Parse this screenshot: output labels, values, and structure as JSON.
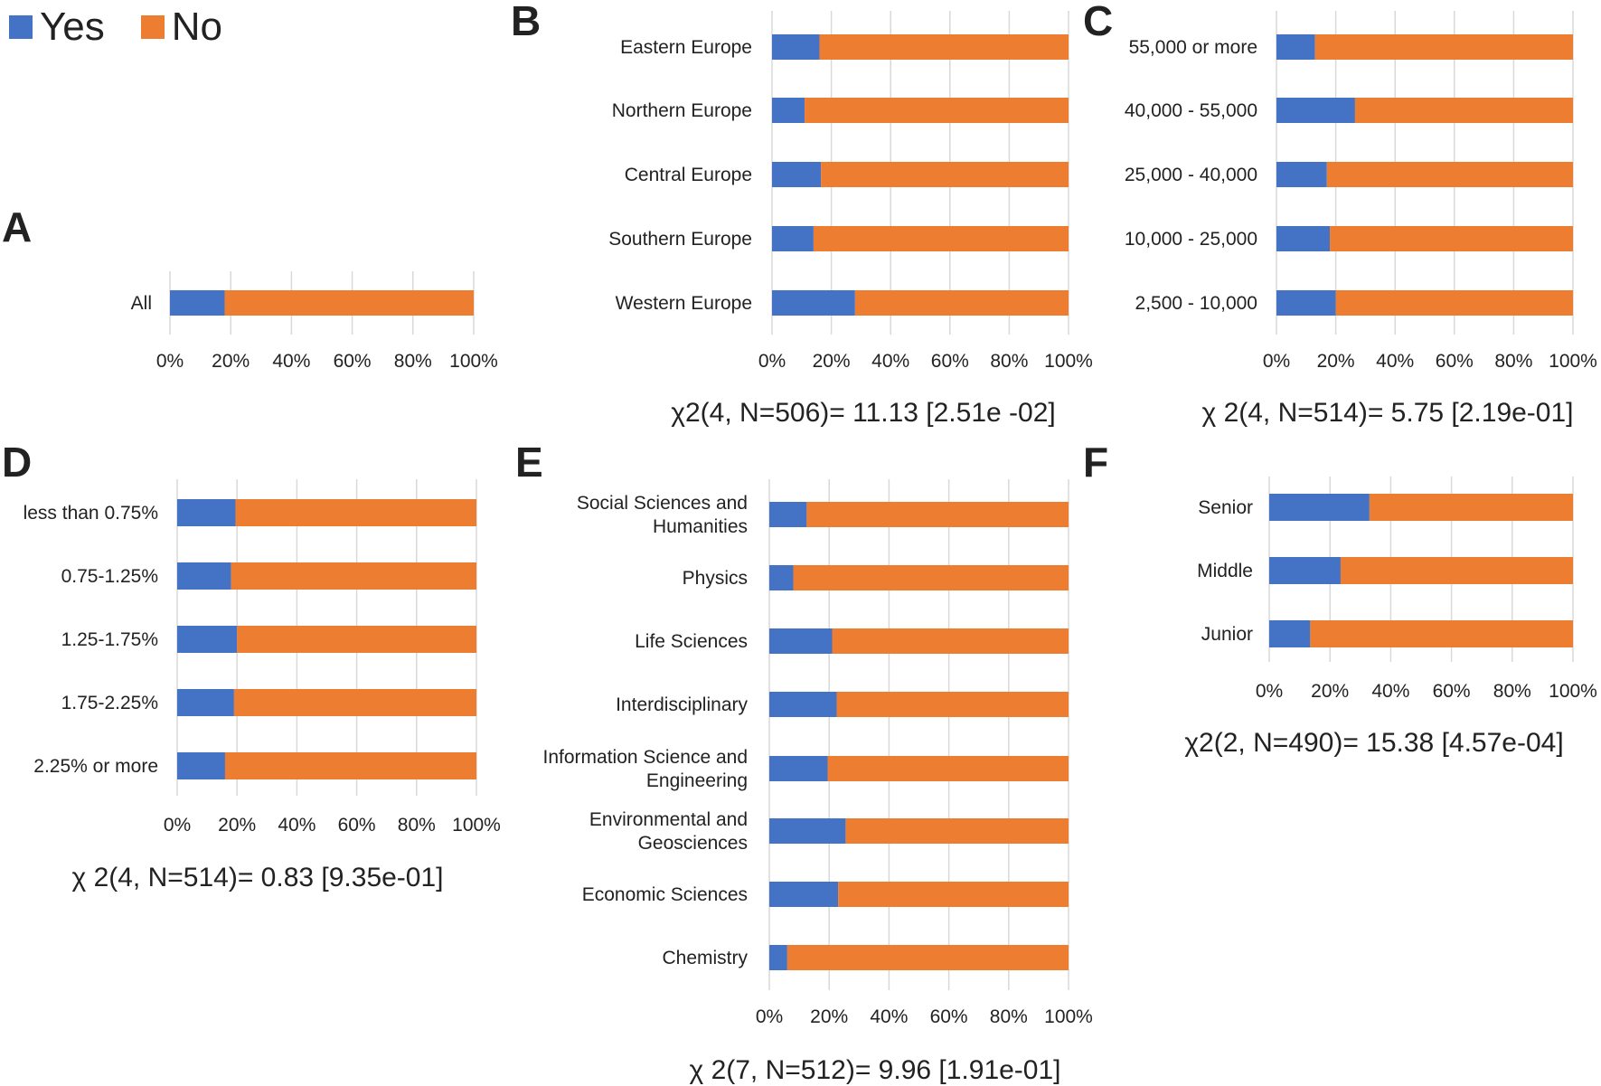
{
  "colors": {
    "yes": "#4472c4",
    "no": "#ed7d31",
    "grid": "#d9d9d9"
  },
  "legend": {
    "yes": "Yes",
    "no": "No"
  },
  "chart_data": [
    {
      "panel": "A",
      "type": "bar",
      "orientation": "horizontal",
      "stacked": true,
      "categories": [
        "All"
      ],
      "series": [
        {
          "name": "Yes",
          "values": [
            18
          ]
        },
        {
          "name": "No",
          "values": [
            82
          ]
        }
      ],
      "xlim": [
        0,
        100
      ],
      "xticks": [
        "0%",
        "20%",
        "40%",
        "60%",
        "80%",
        "100%"
      ],
      "stat": ""
    },
    {
      "panel": "B",
      "type": "bar",
      "orientation": "horizontal",
      "stacked": true,
      "categories": [
        "Eastern Europe",
        "Northern Europe",
        "Central Europe",
        "Southern Europe",
        "Western Europe"
      ],
      "series": [
        {
          "name": "Yes",
          "values": [
            16,
            11,
            16.5,
            14,
            28
          ]
        },
        {
          "name": "No",
          "values": [
            84,
            89,
            83.5,
            86,
            72
          ]
        }
      ],
      "xlim": [
        0,
        100
      ],
      "xticks": [
        "0%",
        "20%",
        "40%",
        "60%",
        "80%",
        "100%"
      ],
      "stat": "χ2(4, N=506)= 11.13 [2.51e -02]"
    },
    {
      "panel": "C",
      "type": "bar",
      "orientation": "horizontal",
      "stacked": true,
      "categories": [
        "55,000 or more",
        "40,000 - 55,000",
        "25,000 - 40,000",
        "10,000 - 25,000",
        "2,500 - 10,000"
      ],
      "series": [
        {
          "name": "Yes",
          "values": [
            13,
            26.5,
            17,
            18,
            20
          ]
        },
        {
          "name": "No",
          "values": [
            87,
            73.5,
            83,
            82,
            80
          ]
        }
      ],
      "xlim": [
        0,
        100
      ],
      "xticks": [
        "0%",
        "20%",
        "40%",
        "60%",
        "80%",
        "100%"
      ],
      "stat": "χ 2(4, N=514)= 5.75 [2.19e-01]"
    },
    {
      "panel": "D",
      "type": "bar",
      "orientation": "horizontal",
      "stacked": true,
      "categories": [
        "less than 0.75%",
        "0.75-1.25%",
        "1.25-1.75%",
        "1.75-2.25%",
        "2.25% or more"
      ],
      "series": [
        {
          "name": "Yes",
          "values": [
            19.5,
            18,
            20,
            19,
            16
          ]
        },
        {
          "name": "No",
          "values": [
            80.5,
            82,
            80,
            81,
            84
          ]
        }
      ],
      "xlim": [
        0,
        100
      ],
      "xticks": [
        "0%",
        "20%",
        "40%",
        "60%",
        "80%",
        "100%"
      ],
      "stat": "χ 2(4, N=514)= 0.83 [9.35e-01]"
    },
    {
      "panel": "E",
      "type": "bar",
      "orientation": "horizontal",
      "stacked": true,
      "categories": [
        "Social Sciences and Humanities",
        "Physics",
        "Life Sciences",
        "Interdisciplinary",
        "Information Science and Engineering",
        "Environmental and Geosciences",
        "Economic Sciences",
        "Chemistry"
      ],
      "category_lines": [
        [
          "Social Sciences and",
          "Humanities"
        ],
        [
          "Physics"
        ],
        [
          "Life Sciences"
        ],
        [
          "Interdisciplinary"
        ],
        [
          "Information Science and",
          "Engineering"
        ],
        [
          "Environmental and",
          "Geosciences"
        ],
        [
          "Economic Sciences"
        ],
        [
          "Chemistry"
        ]
      ],
      "series": [
        {
          "name": "Yes",
          "values": [
            12.5,
            8,
            21,
            22.5,
            19.5,
            25.5,
            23,
            6
          ]
        },
        {
          "name": "No",
          "values": [
            87.5,
            92,
            79,
            77.5,
            80.5,
            74.5,
            77,
            94
          ]
        }
      ],
      "xlim": [
        0,
        100
      ],
      "xticks": [
        "0%",
        "20%",
        "40%",
        "60%",
        "80%",
        "100%"
      ],
      "stat": "χ 2(7, N=512)= 9.96 [1.91e-01]"
    },
    {
      "panel": "F",
      "type": "bar",
      "orientation": "horizontal",
      "stacked": true,
      "categories": [
        "Senior",
        "Middle",
        "Junior"
      ],
      "series": [
        {
          "name": "Yes",
          "values": [
            33,
            23.5,
            13.5
          ]
        },
        {
          "name": "No",
          "values": [
            67,
            76.5,
            86.5
          ]
        }
      ],
      "xlim": [
        0,
        100
      ],
      "xticks": [
        "0%",
        "20%",
        "40%",
        "60%",
        "80%",
        "100%"
      ],
      "stat": "χ2(2, N=490)= 15.38 [4.57e-04]"
    }
  ]
}
